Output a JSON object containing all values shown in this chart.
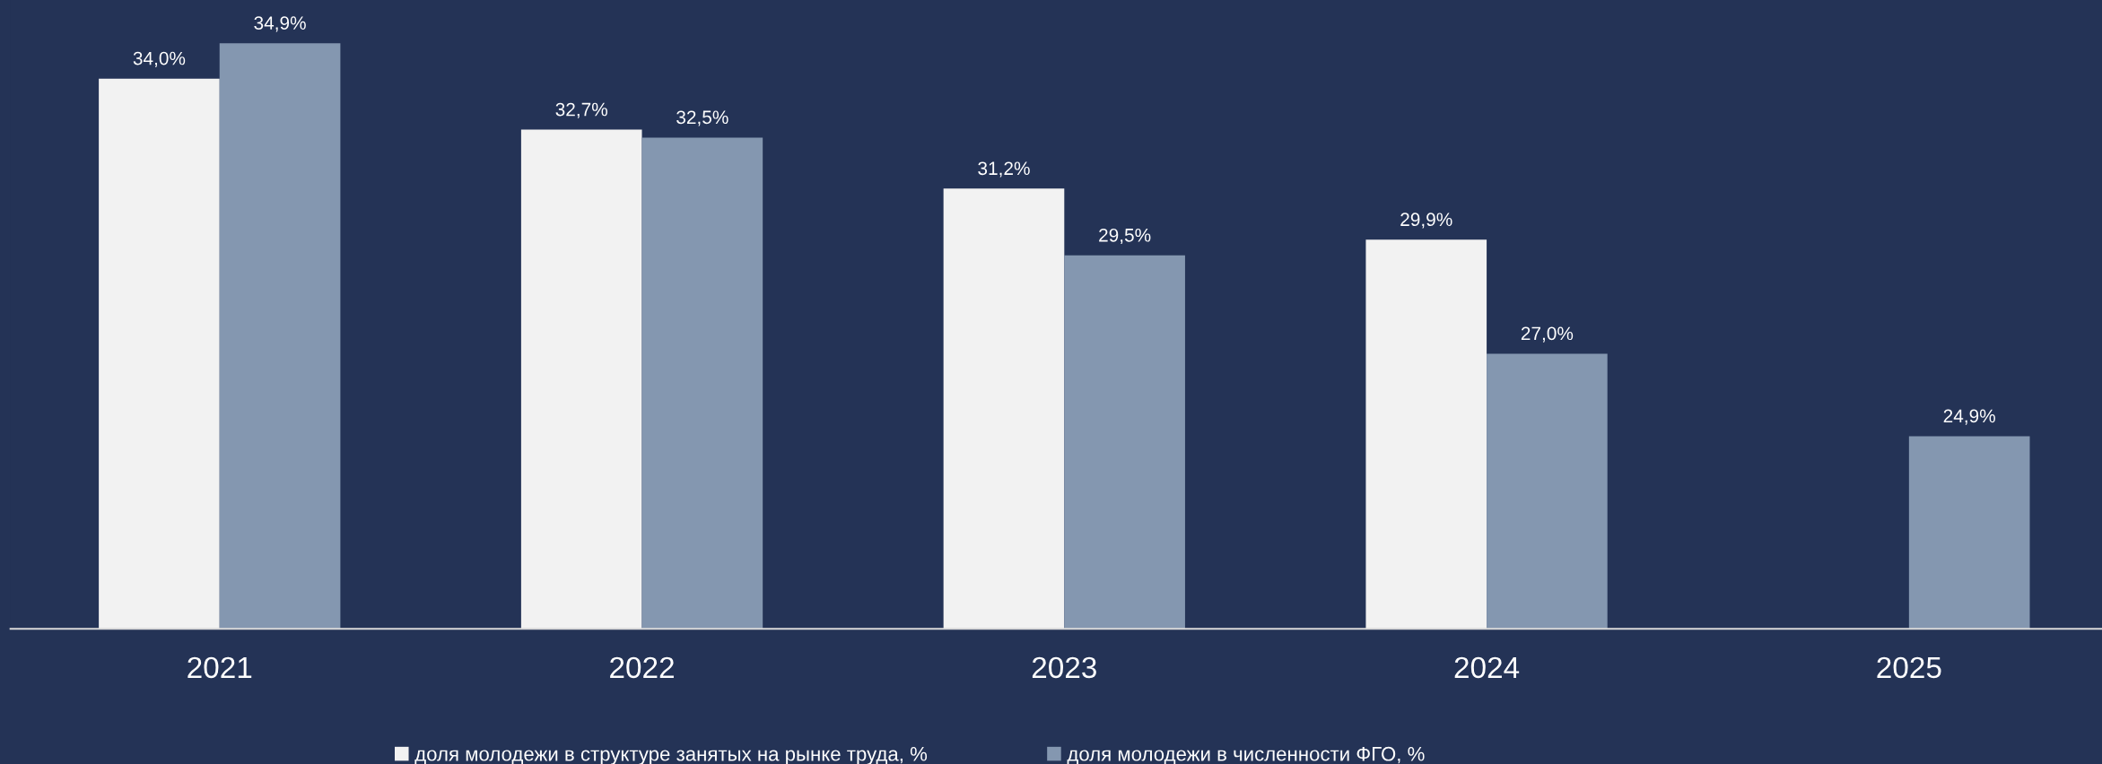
{
  "chart_data": {
    "type": "bar",
    "categories": [
      "2021",
      "2022",
      "2023",
      "2024",
      "2025"
    ],
    "series": [
      {
        "name": "доля молодежи в структуре занятых на рынке труда, %",
        "color": "#f2f2f2",
        "values": [
          34.0,
          32.7,
          31.2,
          29.9,
          null
        ],
        "value_labels": [
          "34,0%",
          "32,7%",
          "31,2%",
          "29,9%",
          null
        ]
      },
      {
        "name": "доля молодежи в численности ФГО, %",
        "color": "#8497b0",
        "values": [
          34.9,
          32.5,
          29.5,
          27.0,
          24.9
        ],
        "value_labels": [
          "34,9%",
          "32,5%",
          "29,5%",
          "27,0%",
          "24,9%"
        ]
      }
    ],
    "ylim": [
      20,
      36
    ],
    "tick_labels": "x",
    "legend": "bottom",
    "grid": false
  }
}
